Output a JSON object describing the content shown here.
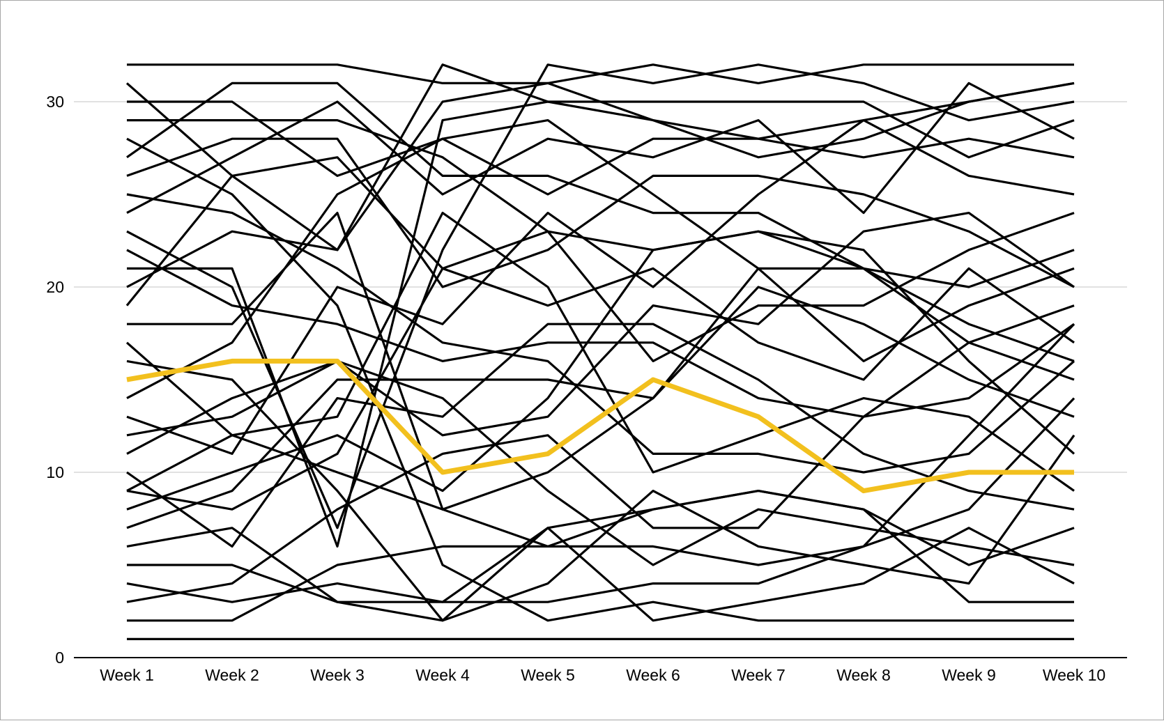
{
  "chart_data": {
    "type": "line",
    "title": "",
    "xlabel": "",
    "ylabel": "",
    "categories": [
      "Week 1",
      "Week 2",
      "Week 3",
      "Week 4",
      "Week 5",
      "Week 6",
      "Week 7",
      "Week 8",
      "Week 9",
      "Week 10"
    ],
    "ylim": [
      0,
      32
    ],
    "yticks": [
      0,
      10,
      20,
      30
    ],
    "grid": true,
    "legend": "none",
    "colors": {
      "default": "#000000",
      "highlight": "#f2c01e",
      "grid": "#cfcfcf"
    },
    "series": [
      {
        "values": [
          15,
          16,
          16,
          10,
          11,
          15,
          13,
          9,
          10,
          10
        ],
        "highlight": true
      },
      {
        "values": [
          1,
          1,
          1,
          1,
          1,
          1,
          1,
          1,
          1,
          1
        ]
      },
      {
        "values": [
          32,
          32,
          32,
          31,
          31,
          32,
          31,
          32,
          32,
          32
        ]
      },
      {
        "values": [
          31,
          26,
          22,
          32,
          30,
          30,
          30,
          30,
          27,
          29
        ]
      },
      {
        "values": [
          30,
          30,
          26,
          28,
          25,
          28,
          28,
          27,
          28,
          27
        ]
      },
      {
        "values": [
          29,
          29,
          29,
          27,
          23,
          22,
          23,
          21,
          20,
          22
        ]
      },
      {
        "values": [
          28,
          25,
          19,
          5,
          2,
          3,
          2,
          2,
          2,
          2
        ]
      },
      {
        "values": [
          27,
          31,
          31,
          26,
          26,
          24,
          24,
          21,
          18,
          16
        ]
      },
      {
        "values": [
          26,
          28,
          28,
          20,
          22,
          26,
          26,
          25,
          23,
          20
        ]
      },
      {
        "values": [
          25,
          24,
          21,
          17,
          16,
          11,
          11,
          10,
          11,
          16
        ]
      },
      {
        "values": [
          24,
          27,
          30,
          25,
          28,
          27,
          29,
          24,
          31,
          28
        ]
      },
      {
        "values": [
          23,
          20,
          7,
          22,
          32,
          31,
          32,
          31,
          29,
          30
        ]
      },
      {
        "values": [
          22,
          19,
          18,
          16,
          17,
          17,
          14,
          13,
          14,
          18
        ]
      },
      {
        "values": [
          21,
          21,
          6,
          29,
          30,
          29,
          27,
          28,
          30,
          31
        ]
      },
      {
        "values": [
          20,
          23,
          22,
          30,
          31,
          29,
          28,
          29,
          26,
          25
        ]
      },
      {
        "values": [
          19,
          26,
          27,
          21,
          19,
          21,
          17,
          15,
          21,
          17
        ]
      },
      {
        "values": [
          18,
          18,
          24,
          8,
          10,
          14,
          20,
          18,
          15,
          13
        ]
      },
      {
        "values": [
          17,
          12,
          13,
          24,
          20,
          10,
          12,
          14,
          13,
          9
        ]
      },
      {
        "values": [
          16,
          15,
          9,
          2,
          7,
          8,
          9,
          8,
          3,
          3
        ]
      },
      {
        "values": [
          14,
          17,
          25,
          28,
          29,
          25,
          21,
          21,
          17,
          15
        ]
      },
      {
        "values": [
          13,
          11,
          20,
          18,
          24,
          20,
          25,
          29,
          30,
          31
        ]
      },
      {
        "values": [
          12,
          13,
          16,
          14,
          9,
          5,
          8,
          7,
          6,
          5
        ]
      },
      {
        "values": [
          11,
          14,
          16,
          12,
          13,
          19,
          18,
          23,
          24,
          20
        ]
      },
      {
        "values": [
          10,
          6,
          14,
          13,
          18,
          18,
          15,
          11,
          9,
          8
        ]
      },
      {
        "values": [
          9,
          8,
          11,
          21,
          23,
          16,
          19,
          19,
          22,
          24
        ]
      },
      {
        "values": [
          8,
          10,
          12,
          9,
          14,
          22,
          23,
          22,
          16,
          11
        ]
      },
      {
        "values": [
          7,
          9,
          15,
          15,
          15,
          14,
          21,
          16,
          19,
          21
        ]
      },
      {
        "values": [
          6,
          7,
          3,
          2,
          4,
          9,
          6,
          5,
          4,
          12
        ]
      },
      {
        "values": [
          5,
          5,
          3,
          3,
          3,
          4,
          4,
          6,
          12,
          18
        ]
      },
      {
        "values": [
          4,
          3,
          4,
          3,
          7,
          2,
          3,
          4,
          7,
          4
        ]
      },
      {
        "values": [
          3,
          4,
          8,
          11,
          12,
          7,
          7,
          13,
          17,
          19
        ]
      },
      {
        "values": [
          2,
          2,
          5,
          6,
          6,
          8,
          9,
          8,
          5,
          7
        ]
      },
      {
        "values": [
          9,
          12,
          10,
          8,
          6,
          6,
          5,
          6,
          8,
          14
        ]
      }
    ]
  }
}
